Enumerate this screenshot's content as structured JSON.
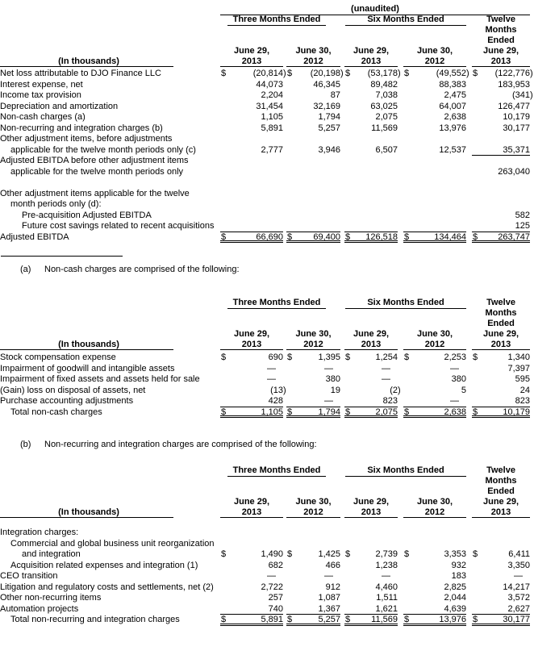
{
  "page": {
    "background": "#ffffff",
    "text_color": "#000000"
  },
  "header_template": {
    "unaudited": "(unaudited)",
    "group1": "Three Months Ended",
    "group2": "Six Months Ended",
    "col5_lines": [
      "Twelve",
      "Months",
      "Ended",
      "June 29,",
      "2013"
    ],
    "dates": [
      [
        "June 29,",
        "2013"
      ],
      [
        "June 30,",
        "2012"
      ],
      [
        "June 29,",
        "2013"
      ],
      [
        "June 30,",
        "2012"
      ]
    ],
    "in_thousands": "(In thousands)"
  },
  "footnotes": [
    {
      "marker": "(a)",
      "text": "Non-cash charges are comprised of the following:"
    },
    {
      "marker": "(b)",
      "text": "Non-recurring and integration charges are comprised of the following:"
    }
  ],
  "tables": [
    {
      "name": "adjusted-ebitda-reconciliation-table",
      "show_unaudited": true,
      "rows_gap": 2,
      "rows": [
        {
          "label": "Net loss attributable to DJO Finance LLC",
          "indent": 0,
          "dollar": true,
          "values": [
            "(20,814)",
            "(20,198)",
            "(53,178)",
            "(49,552)",
            "(122,776)"
          ],
          "rule": "none"
        },
        {
          "label": "Interest expense, net",
          "indent": 0,
          "values": [
            "44,073",
            "46,345",
            "89,482",
            "88,383",
            "183,953"
          ],
          "rule": "none"
        },
        {
          "label": "Income tax provision",
          "indent": 0,
          "values": [
            "2,204",
            "87",
            "7,038",
            "2,475",
            "(341)"
          ],
          "rule": "none"
        },
        {
          "label": "Depreciation and amortization",
          "indent": 0,
          "values": [
            "31,454",
            "32,169",
            "63,025",
            "64,007",
            "126,477"
          ],
          "rule": "none"
        },
        {
          "label": "Non-cash charges (a)",
          "indent": 0,
          "values": [
            "1,105",
            "1,794",
            "2,075",
            "2,638",
            "10,179"
          ],
          "rule": "none"
        },
        {
          "label": "Non-recurring and integration charges (b)",
          "indent": 0,
          "values": [
            "5,891",
            "5,257",
            "11,569",
            "13,976",
            "30,177"
          ],
          "rule": "none"
        },
        {
          "label": "Other adjustment items, before adjustments",
          "indent": 0,
          "values": [
            "",
            "",
            "",
            "",
            ""
          ],
          "rule": "none"
        },
        {
          "label": "applicable for the twelve month periods only (c)",
          "indent": 1,
          "values": [
            "2,777",
            "3,946",
            "6,507",
            "12,537",
            "35,371"
          ],
          "rule": "col5"
        },
        {
          "label": "Adjusted EBITDA before other adjustment items",
          "indent": 0,
          "values": [
            "",
            "",
            "",
            "",
            ""
          ],
          "rule": "none"
        },
        {
          "label": "applicable for the twelve month periods only",
          "indent": 1,
          "values": [
            "",
            "",
            "",
            "",
            "263,040"
          ],
          "rule": "none"
        },
        {
          "spacer": true
        },
        {
          "label": "Other adjustment items applicable for the twelve",
          "indent": 0,
          "values": [
            "",
            "",
            "",
            "",
            ""
          ],
          "rule": "none"
        },
        {
          "label": "month periods only (d):",
          "indent": 1,
          "values": [
            "",
            "",
            "",
            "",
            ""
          ],
          "rule": "none"
        },
        {
          "label": "Pre-acquisition Adjusted EBITDA",
          "indent": 2,
          "values": [
            "",
            "",
            "",
            "",
            "582"
          ],
          "rule": "none"
        },
        {
          "label": "Future cost savings related to recent acquisitions",
          "indent": 2,
          "values": [
            "",
            "",
            "",
            "",
            "125"
          ],
          "rule": "all"
        },
        {
          "label": "Adjusted EBITDA",
          "indent": 0,
          "dollar": true,
          "values": [
            "66,690",
            "69,400",
            "126,518",
            "134,464",
            "263,747"
          ],
          "rule": "double"
        }
      ]
    },
    {
      "name": "non-cash-charges-table",
      "show_unaudited": false,
      "rows_gap": 3,
      "rows": [
        {
          "label": "Stock compensation expense",
          "indent": 0,
          "dollar": true,
          "values": [
            "690",
            "1,395",
            "1,254",
            "2,253",
            "1,340"
          ],
          "rule": "none"
        },
        {
          "label": "Impairment of goodwill and intangible assets",
          "indent": 0,
          "values": [
            "—",
            "—",
            "—",
            "—",
            "7,397"
          ],
          "rule": "none"
        },
        {
          "label": "Impairment of fixed assets and assets held for sale",
          "indent": 0,
          "values": [
            "—",
            "380",
            "—",
            "380",
            "595"
          ],
          "rule": "none"
        },
        {
          "label": "(Gain) loss on disposal of assets, net",
          "indent": 0,
          "values": [
            "(13)",
            "19",
            "(2)",
            "5",
            "24"
          ],
          "rule": "none"
        },
        {
          "label": "Purchase accounting adjustments",
          "indent": 0,
          "values": [
            "428",
            "—",
            "823",
            "—",
            "823"
          ],
          "rule": "all"
        },
        {
          "label": "Total non-cash charges",
          "indent": 1,
          "dollar": true,
          "values": [
            "1,105",
            "1,794",
            "2,075",
            "2,638",
            "10,179"
          ],
          "rule": "double"
        }
      ]
    },
    {
      "name": "non-recurring-integration-charges-table",
      "show_unaudited": false,
      "rows_gap": 12,
      "rows": [
        {
          "label": "Integration charges:",
          "indent": 0,
          "values": [
            "",
            "",
            "",
            "",
            ""
          ],
          "rule": "none"
        },
        {
          "label": "Commercial and global business unit reorganization",
          "indent": 1,
          "values": [
            "",
            "",
            "",
            "",
            ""
          ],
          "rule": "none"
        },
        {
          "label": "and integration",
          "indent": 2,
          "dollar": true,
          "values": [
            "1,490",
            "1,425",
            "2,739",
            "3,353",
            "6,411"
          ],
          "rule": "none"
        },
        {
          "label": "Acquisition related expenses and integration (1)",
          "indent": 1,
          "values": [
            "682",
            "466",
            "1,238",
            "932",
            "3,350"
          ],
          "rule": "none"
        },
        {
          "label": "CEO transition",
          "indent": 0,
          "values": [
            "—",
            "—",
            "—",
            "183",
            "—"
          ],
          "rule": "none"
        },
        {
          "label": "Litigation and regulatory costs and settlements, net (2)",
          "indent": 0,
          "values": [
            "2,722",
            "912",
            "4,460",
            "2,825",
            "14,217"
          ],
          "rule": "none"
        },
        {
          "label": "Other non-recurring items",
          "indent": 0,
          "values": [
            "257",
            "1,087",
            "1,511",
            "2,044",
            "3,572"
          ],
          "rule": "none"
        },
        {
          "label": "Automation projects",
          "indent": 0,
          "values": [
            "740",
            "1,367",
            "1,621",
            "4,639",
            "2,627"
          ],
          "rule": "all"
        },
        {
          "label": "Total non-recurring and integration charges",
          "indent": 1,
          "dollar": true,
          "values": [
            "5,891",
            "5,257",
            "11,569",
            "13,976",
            "30,177"
          ],
          "rule": "double"
        }
      ]
    }
  ]
}
